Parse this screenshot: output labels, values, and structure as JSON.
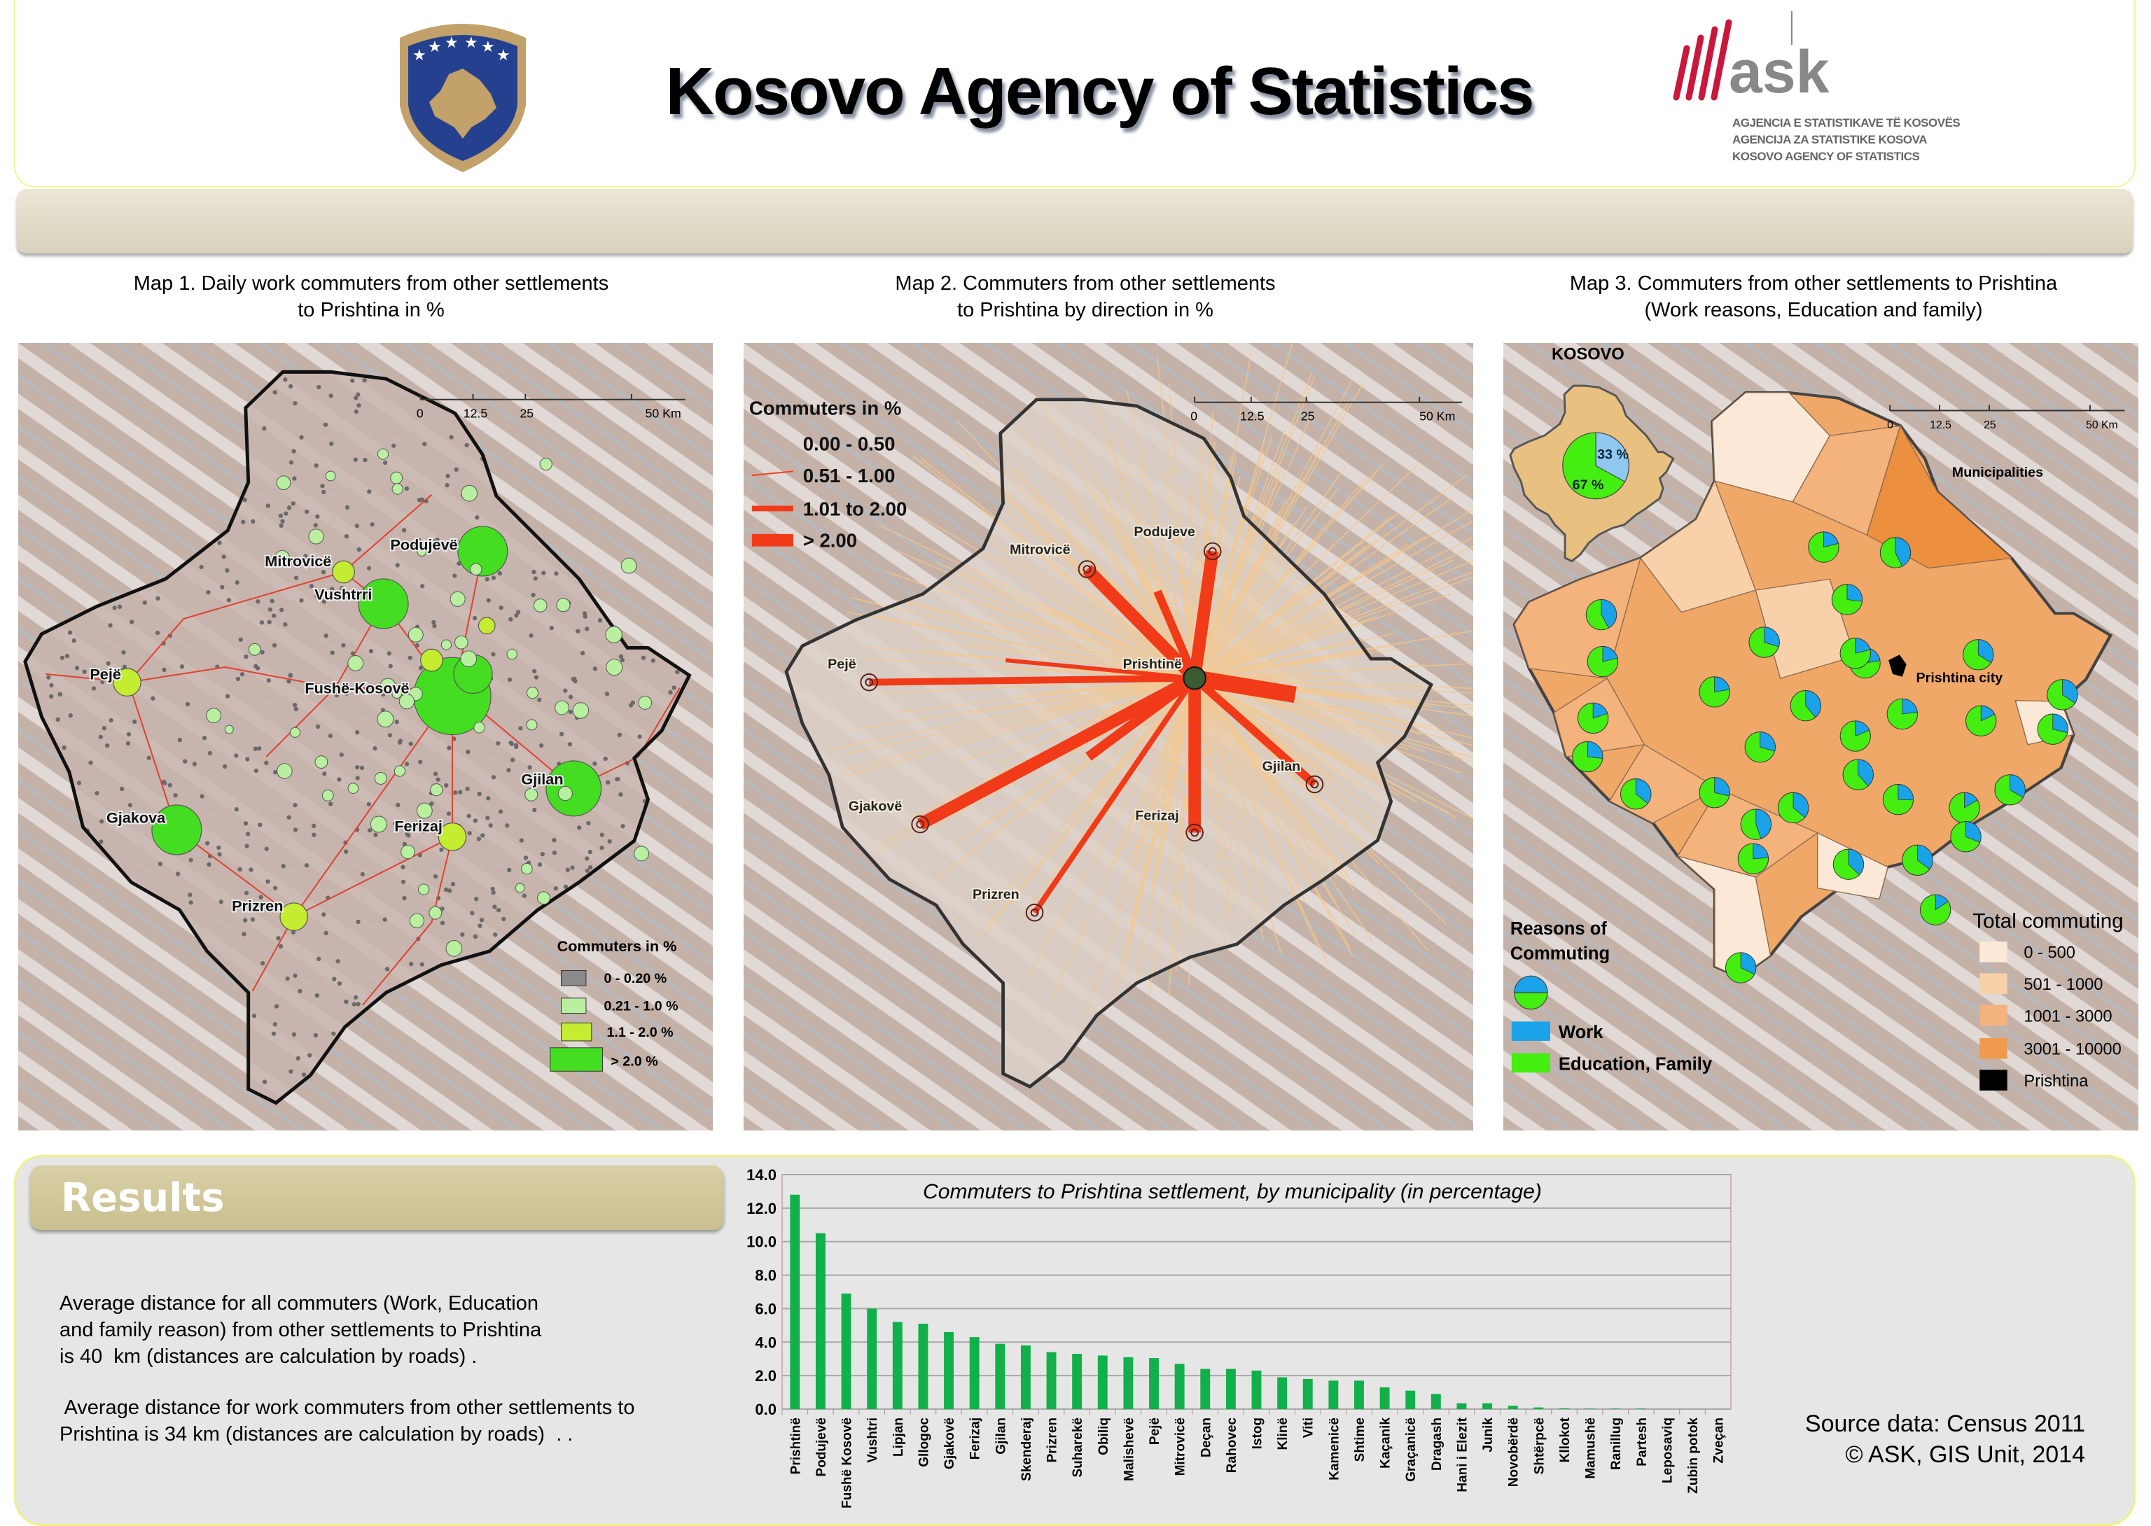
{
  "header": {
    "title": "Kosovo Agency of Statistics",
    "logo_text": "ask",
    "logo_lines": [
      "AGJENCIA E STATISTIKAVE TË KOSOVËS",
      "AGENCIJA ZA STATISTIKE KOSOVA",
      "KOSOVO AGENCY OF STATISTICS"
    ],
    "crest_icon": "kosovo-coat-of-arms"
  },
  "map1": {
    "title_line1": "Map 1. Daily work commuters from other settlements",
    "title_line2": "to Prishtina in %",
    "scale": [
      "0",
      "12.5",
      "25",
      "50 Km"
    ],
    "places": [
      "Podujevë",
      "Mitrovicë",
      "Vushtrri",
      "Fushë-Kosovë",
      "Pejë",
      "Gjakova",
      "Gjilan",
      "Ferizaj",
      "Prizren"
    ],
    "legend": {
      "title": "Commuters in %",
      "items": [
        {
          "label": "0 - 0.20 %",
          "color": "#8a8a8a"
        },
        {
          "label": "0.21 - 1.0 %",
          "color": "#b8f0a0"
        },
        {
          "label": "1.1 - 2.0 %",
          "color": "#c4ec30"
        },
        {
          "label": "> 2.0 %",
          "color": "#44dd22"
        }
      ]
    }
  },
  "map2": {
    "title_line1": "Map 2. Commuters from other settlements",
    "title_line2": "to Prishtina by direction in %",
    "scale": [
      "0",
      "12.5",
      "25",
      "50 Km"
    ],
    "places": [
      "Mitrovicë",
      "Podujeve",
      "Pejë",
      "Prishtinë",
      "Gjilan",
      "Gjakovë",
      "Ferizaj",
      "Prizren"
    ],
    "legend": {
      "title": "Commuters in %",
      "items": [
        {
          "label": "0.00 - 0.50",
          "color": "#f8d8a0"
        },
        {
          "label": "0.51 - 1.00",
          "color": "#f04020"
        },
        {
          "label": "1.01 to 2.00",
          "color": "#f03a18"
        },
        {
          "label": "> 2.00",
          "color": "#f03a18"
        }
      ]
    }
  },
  "map3": {
    "title_line1": "Map 3. Commuters from other settlements to Prishtina",
    "title_line2": "(Work reasons, Education and family)",
    "inset": {
      "label": "KOSOVO",
      "work_pct": "33 %",
      "education_pct": "67 %",
      "work_share": 0.33
    },
    "scale": [
      "0",
      "12.5",
      "25",
      "50 Km"
    ],
    "scale_unit_label": "Municipalities",
    "city_label": "Prishtina city",
    "reasons_legend": {
      "title_line1": "Reasons of",
      "title_line2": "Commuting",
      "items": [
        {
          "label": "Work",
          "color": "#1aa3e8"
        },
        {
          "label": "Education, Family",
          "color": "#44ee11"
        }
      ]
    },
    "total_legend": {
      "title": "Total commuting",
      "items": [
        {
          "label": "0 - 500",
          "color": "#fbe8d6"
        },
        {
          "label": "501 - 1000",
          "color": "#f8d0aa"
        },
        {
          "label": "1001 - 3000",
          "color": "#f4b27c"
        },
        {
          "label": "3001 - 10000",
          "color": "#ef9a4e"
        },
        {
          "label": "Prishtina",
          "color": "#000000"
        }
      ]
    }
  },
  "results": {
    "heading": "Results",
    "paragraph1": [
      "Average distance for all commuters (Work, Education",
      "and family reason) from other settlements to Prishtina",
      "is 40  km (distances are calculation by roads) ."
    ],
    "paragraph2": [
      " Average distance for work commuters from other settlements to",
      "Prishtina is 34 km (distances are calculation by roads)  . ."
    ]
  },
  "source": {
    "line1": "Source data: Census 2011",
    "line2": "© ASK, GIS Unit, 2014"
  },
  "chart_data": {
    "type": "bar",
    "title": "Commuters  to Prishtina settlement, by municipality (in percentage)",
    "xlabel": "",
    "ylabel": "",
    "ylim": [
      0,
      14
    ],
    "yticks": [
      "0.0",
      "2.0",
      "4.0",
      "6.0",
      "8.0",
      "10.0",
      "12.0",
      "14.0"
    ],
    "grid": true,
    "bar_color": "#11b04a",
    "categories": [
      "Prishtinë",
      "Podujevë",
      "Fushë Kosovë",
      "Vushtri",
      "Lipjan",
      "Gllogoc",
      "Gjakovë",
      "Ferizaj",
      "Gjilan",
      "Skenderaj",
      "Prizren",
      "Suharekë",
      "Obiliq",
      "Malishevë",
      "Pejë",
      "Mitrovicë",
      "Deçan",
      "Rahovec",
      "Istog",
      "Klinë",
      "Viti",
      "Kamenicë",
      "Shtime",
      "Kaçanik",
      "Graçanicë",
      "Dragash",
      "Hani i Elezit",
      "Junik",
      "Novobërdë",
      "Shtërpcë",
      "Kllokot",
      "Mamushë",
      "Ranillug",
      "Partesh",
      "Leposaviq",
      "Zubin potok",
      "Zveçan"
    ],
    "values": [
      12.8,
      10.5,
      6.9,
      6.0,
      5.2,
      5.1,
      4.6,
      4.3,
      3.9,
      3.8,
      3.4,
      3.3,
      3.2,
      3.1,
      3.05,
      2.7,
      2.4,
      2.4,
      2.3,
      1.9,
      1.8,
      1.7,
      1.7,
      1.3,
      1.1,
      0.9,
      0.35,
      0.35,
      0.2,
      0.1,
      0.05,
      0.03,
      0.03,
      0.03,
      0,
      0,
      0
    ]
  }
}
